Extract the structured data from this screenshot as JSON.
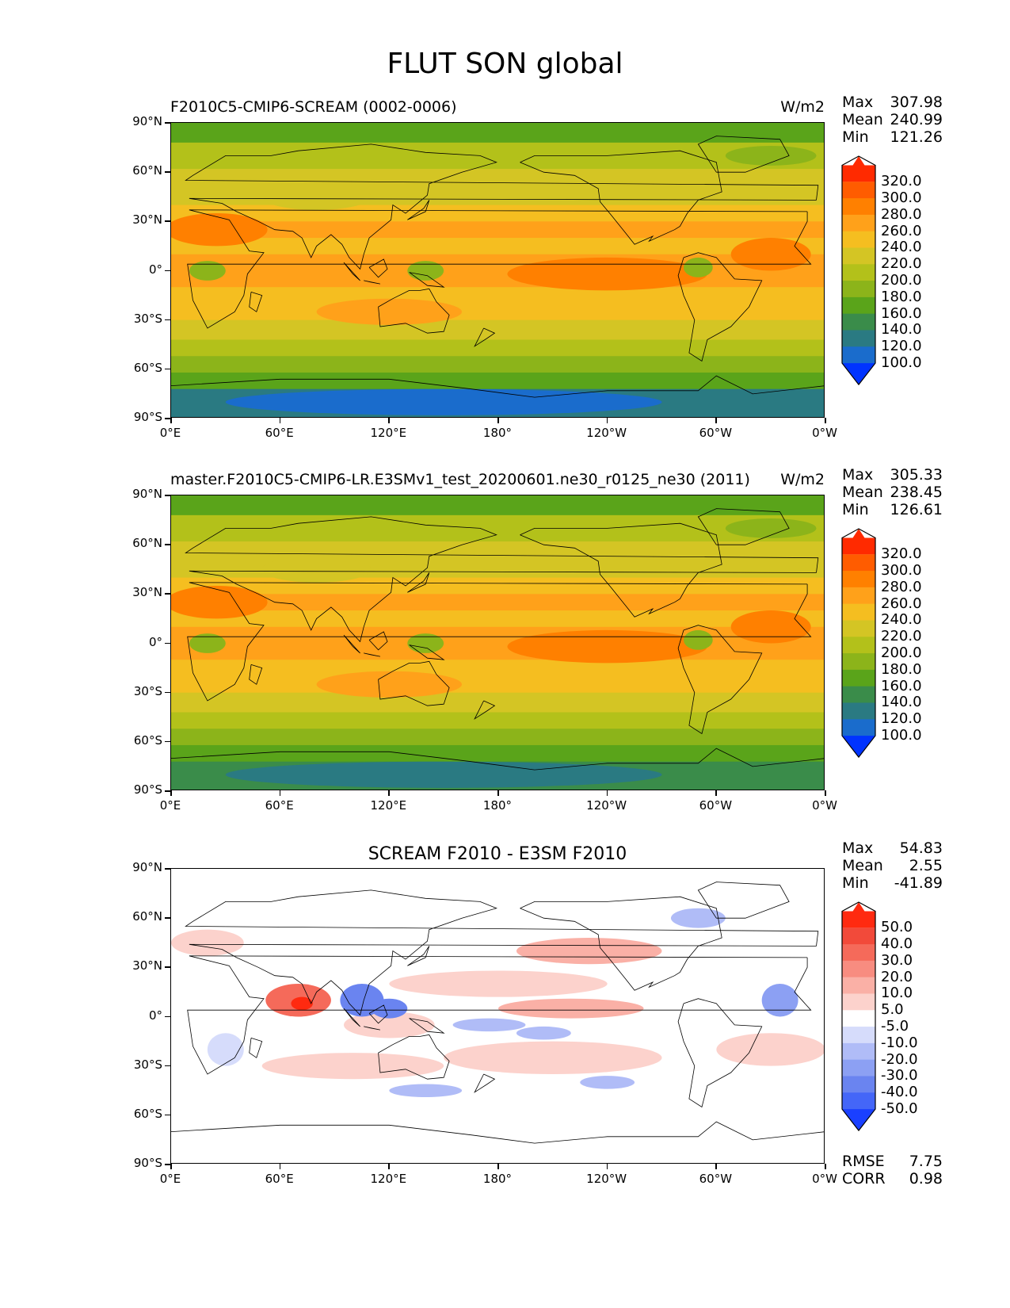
{
  "figure": {
    "title": "FLUT SON global"
  },
  "panels": [
    {
      "id": "test",
      "title_left": "F2010C5-CMIP6-SCREAM (0002-0006)",
      "title_center": "",
      "units": "W/m2",
      "stats": [
        {
          "label": "Max",
          "value": "307.98"
        },
        {
          "label": "Mean",
          "value": "240.99"
        },
        {
          "label": "Min",
          "value": "121.26"
        }
      ],
      "colorbar": {
        "labels": [
          "320.0",
          "300.0",
          "280.0",
          "260.0",
          "240.0",
          "220.0",
          "200.0",
          "180.0",
          "160.0",
          "140.0",
          "120.0",
          "100.0"
        ],
        "colors": [
          "#ff2a00",
          "#ff5c00",
          "#ff8000",
          "#ffa11a",
          "#f5be20",
          "#d4c524",
          "#b3c11a",
          "#8cb41a",
          "#5aa41a",
          "#3a8c4a",
          "#2a7a82",
          "#1a6ccc",
          "#0033ff"
        ]
      }
    },
    {
      "id": "reference",
      "title_left": "master.F2010C5-CMIP6-LR.E3SMv1_test_20200601.ne30_r0125_ne30 (2011)",
      "title_center": "",
      "units": "W/m2",
      "stats": [
        {
          "label": "Max",
          "value": "305.33"
        },
        {
          "label": "Mean",
          "value": "238.45"
        },
        {
          "label": "Min",
          "value": "126.61"
        }
      ],
      "colorbar": {
        "labels": [
          "320.0",
          "300.0",
          "280.0",
          "260.0",
          "240.0",
          "220.0",
          "200.0",
          "180.0",
          "160.0",
          "140.0",
          "120.0",
          "100.0"
        ],
        "colors": [
          "#ff2a00",
          "#ff5c00",
          "#ff8000",
          "#ffa11a",
          "#f5be20",
          "#d4c524",
          "#b3c11a",
          "#8cb41a",
          "#5aa41a",
          "#3a8c4a",
          "#2a7a82",
          "#1a6ccc",
          "#0033ff"
        ]
      }
    },
    {
      "id": "difference",
      "title_left": "",
      "title_center": "SCREAM F2010 - E3SM F2010",
      "units": "",
      "stats": [
        {
          "label": "Max",
          "value": "54.83"
        },
        {
          "label": "Mean",
          "value": "2.55"
        },
        {
          "label": "Min",
          "value": "-41.89"
        }
      ],
      "colorbar": {
        "labels": [
          "50.0",
          "40.0",
          "30.0",
          "20.0",
          "10.0",
          "5.0",
          "-5.0",
          "-10.0",
          "-20.0",
          "-30.0",
          "-40.0",
          "-50.0"
        ],
        "colors": [
          "#ff2a10",
          "#f24a3a",
          "#f56a5a",
          "#f88c80",
          "#fab0a6",
          "#fcd2cc",
          "#ffffff",
          "#d6dcfb",
          "#b0bcf7",
          "#8ca0f3",
          "#6a84f0",
          "#4466f8",
          "#1a40ff"
        ]
      },
      "footer_stats": [
        {
          "label": "RMSE",
          "value": "7.75"
        },
        {
          "label": "CORR",
          "value": "0.98"
        }
      ]
    }
  ],
  "axes": {
    "lat_ticks": [
      "90°N",
      "60°N",
      "30°N",
      "0°",
      "30°S",
      "60°S",
      "90°S"
    ],
    "lon_ticks": [
      "0°E",
      "60°E",
      "120°E",
      "180°",
      "120°W",
      "60°W",
      "0°W"
    ]
  }
}
